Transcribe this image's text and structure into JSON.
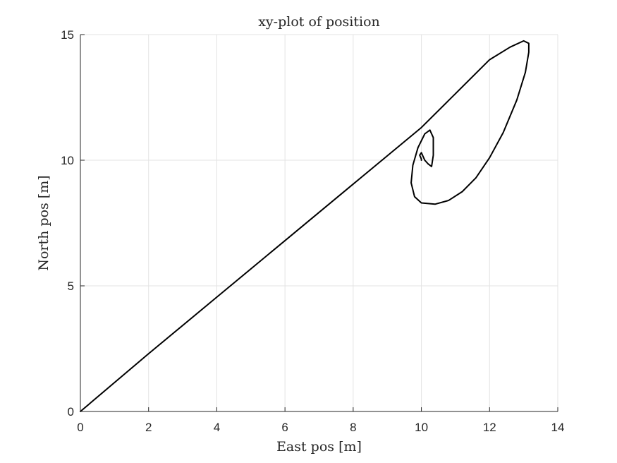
{
  "chart_data": {
    "type": "line",
    "title": "xy-plot of position",
    "xlabel": "East pos [m]",
    "ylabel": "North pos [m]",
    "xlim": [
      0,
      14
    ],
    "ylim": [
      0,
      15
    ],
    "xticks": [
      0,
      2,
      4,
      6,
      8,
      10,
      12,
      14
    ],
    "yticks": [
      0,
      5,
      10,
      15
    ],
    "xtick_labels": [
      "0",
      "2",
      "4",
      "6",
      "8",
      "10",
      "12",
      "14"
    ],
    "ytick_labels": [
      "0",
      "5",
      "10",
      "15"
    ],
    "grid": true,
    "series": [
      {
        "color": "#000000",
        "x": [
          0,
          2,
          4,
          6,
          8,
          10,
          11,
          12,
          12.6,
          13.0,
          13.15,
          13.15,
          13.05,
          12.8,
          12.4,
          12.0,
          11.6,
          11.2,
          10.8,
          10.4,
          10.0,
          9.8,
          9.7,
          9.75,
          9.9,
          10.1,
          10.25,
          10.35,
          10.35,
          10.3,
          10.2,
          10.1,
          10.05,
          10.0,
          9.95,
          10.0,
          10.0
        ],
        "y": [
          0,
          2.3,
          4.55,
          6.8,
          9.05,
          11.3,
          12.65,
          14.0,
          14.5,
          14.75,
          14.65,
          14.3,
          13.5,
          12.4,
          11.1,
          10.1,
          9.3,
          8.75,
          8.4,
          8.25,
          8.3,
          8.55,
          9.1,
          9.8,
          10.5,
          11.05,
          11.2,
          10.9,
          10.2,
          9.75,
          9.85,
          10.0,
          10.15,
          10.3,
          10.2,
          10.05,
          10.0
        ]
      }
    ]
  }
}
